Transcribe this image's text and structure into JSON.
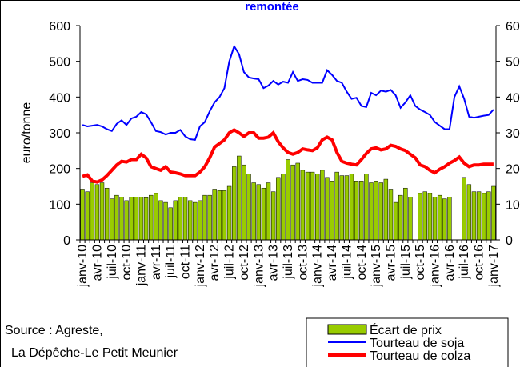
{
  "chart_data": {
    "type": "bar-line",
    "title": "remontée",
    "y_label": "euro/tonne",
    "source": [
      "Source : Agreste,",
      "La Dépêche-Le Petit Meunier"
    ],
    "categories": [
      "janv-10",
      null,
      null,
      "avr-10",
      null,
      null,
      "juil-10",
      null,
      null,
      "oct-10",
      null,
      null,
      "janv-11",
      null,
      null,
      "avr-11",
      null,
      null,
      "juil-11",
      null,
      null,
      "oct-11",
      null,
      null,
      "janv-12",
      null,
      null,
      "avr-12",
      null,
      null,
      "juil-12",
      null,
      null,
      "oct-12",
      null,
      null,
      "janv-13",
      null,
      null,
      "avr-13",
      null,
      null,
      "juil-13",
      null,
      null,
      "oct-13",
      null,
      null,
      "janv-14",
      null,
      null,
      "avr-14",
      null,
      null,
      "juil-14",
      null,
      null,
      "oct-14",
      null,
      null,
      "janv-15",
      null,
      null,
      "avr-15",
      null,
      null,
      "juil-15",
      null,
      null,
      "oct-15",
      null,
      null,
      "janv-16",
      null,
      null,
      "avr-16",
      null,
      null,
      "juil-16",
      null,
      null,
      "oct-16",
      null,
      null,
      "janv-17"
    ],
    "series": [
      {
        "name": "Écart de prix",
        "kind": "bar",
        "color": "#99cc00",
        "values": [
          140,
          135,
          160,
          155,
          160,
          145,
          115,
          125,
          120,
          110,
          120,
          120,
          120,
          118,
          125,
          130,
          110,
          105,
          90,
          110,
          120,
          120,
          110,
          105,
          110,
          125,
          125,
          140,
          138,
          138,
          150,
          205,
          235,
          210,
          185,
          160,
          155,
          145,
          160,
          135,
          175,
          185,
          225,
          210,
          215,
          195,
          190,
          190,
          185,
          195,
          175,
          165,
          190,
          180,
          180,
          185,
          165,
          165,
          185,
          160,
          165,
          160,
          170,
          140,
          105,
          125,
          145,
          120,
          null,
          130,
          135,
          130,
          120,
          125,
          115,
          120,
          null,
          null,
          175,
          155,
          135,
          135,
          130,
          135,
          150
        ]
      },
      {
        "name": "Tourteau de soja",
        "kind": "line",
        "color": "#0000ff",
        "values": [
          322,
          318,
          320,
          322,
          318,
          310,
          305,
          325,
          335,
          322,
          340,
          345,
          358,
          352,
          330,
          305,
          302,
          295,
          300,
          300,
          308,
          290,
          282,
          280,
          318,
          330,
          360,
          385,
          400,
          425,
          500,
          542,
          520,
          470,
          455,
          452,
          450,
          425,
          432,
          445,
          435,
          443,
          440,
          470,
          445,
          450,
          448,
          440,
          440,
          440,
          475,
          462,
          445,
          440,
          415,
          395,
          398,
          375,
          372,
          412,
          405,
          418,
          415,
          420,
          405,
          370,
          385,
          405,
          375,
          365,
          358,
          350,
          330,
          320,
          310,
          310,
          400,
          430,
          395,
          345,
          342,
          345,
          348,
          350,
          365
        ]
      },
      {
        "name": "Tourteau de colza",
        "kind": "line",
        "color": "#ff0000",
        "values": [
          178,
          182,
          165,
          162,
          168,
          180,
          195,
          210,
          220,
          218,
          225,
          225,
          240,
          230,
          205,
          200,
          195,
          205,
          190,
          188,
          185,
          180,
          180,
          180,
          190,
          205,
          230,
          260,
          270,
          280,
          300,
          308,
          300,
          290,
          300,
          300,
          285,
          285,
          288,
          300,
          275,
          258,
          245,
          240,
          245,
          255,
          252,
          250,
          258,
          280,
          288,
          280,
          245,
          220,
          215,
          212,
          210,
          225,
          242,
          255,
          258,
          252,
          255,
          265,
          262,
          255,
          250,
          240,
          230,
          210,
          205,
          195,
          188,
          198,
          205,
          215,
          222,
          232,
          215,
          205,
          210,
          210,
          212,
          212,
          212
        ]
      }
    ],
    "ylim": [
      0,
      600
    ],
    "yticks": [
      0,
      100,
      200,
      300,
      400,
      500,
      600
    ],
    "y2lim": [
      0,
      600
    ],
    "y2ticks": [
      0,
      100,
      200,
      300,
      400,
      500,
      600
    ]
  }
}
